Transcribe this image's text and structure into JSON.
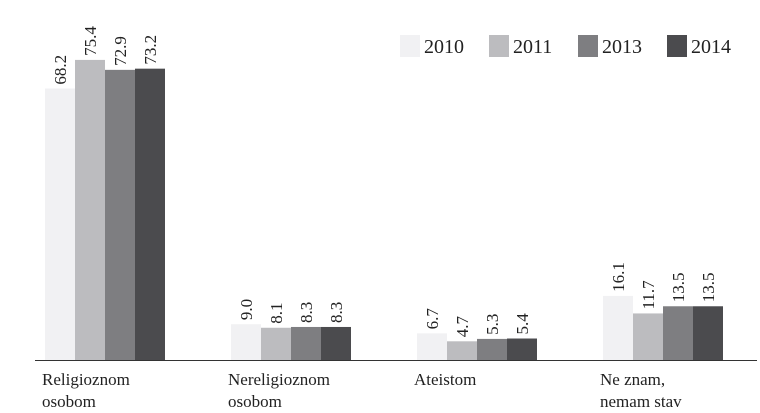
{
  "chart_data": {
    "type": "bar",
    "categories": [
      "Religioznom\nosobom",
      "Nereligioznom\nosobom",
      "Ateistom",
      "Ne znam,\nnemam stav"
    ],
    "series": [
      {
        "name": "2010",
        "color": "#f1f1f3",
        "values": [
          68.2,
          9.0,
          6.7,
          16.1
        ],
        "value_labels": [
          "68.2",
          "9.0",
          "6.7",
          "16.1"
        ]
      },
      {
        "name": "2011",
        "color": "#bcbcbf",
        "values": [
          75.4,
          8.1,
          4.7,
          11.7
        ],
        "value_labels": [
          "75.4",
          "8.1",
          "4.7",
          "11.7"
        ]
      },
      {
        "name": "2013",
        "color": "#7e7e81",
        "values": [
          72.9,
          8.3,
          5.3,
          13.5
        ],
        "value_labels": [
          "72.9",
          "8.3",
          "5.3",
          "13.5"
        ]
      },
      {
        "name": "2014",
        "color": "#4b4b4e",
        "values": [
          73.2,
          8.3,
          5.4,
          13.5
        ],
        "value_labels": [
          "73.2",
          "8.3",
          "5.4",
          "13.5"
        ]
      }
    ],
    "legend": "top-right"
  }
}
